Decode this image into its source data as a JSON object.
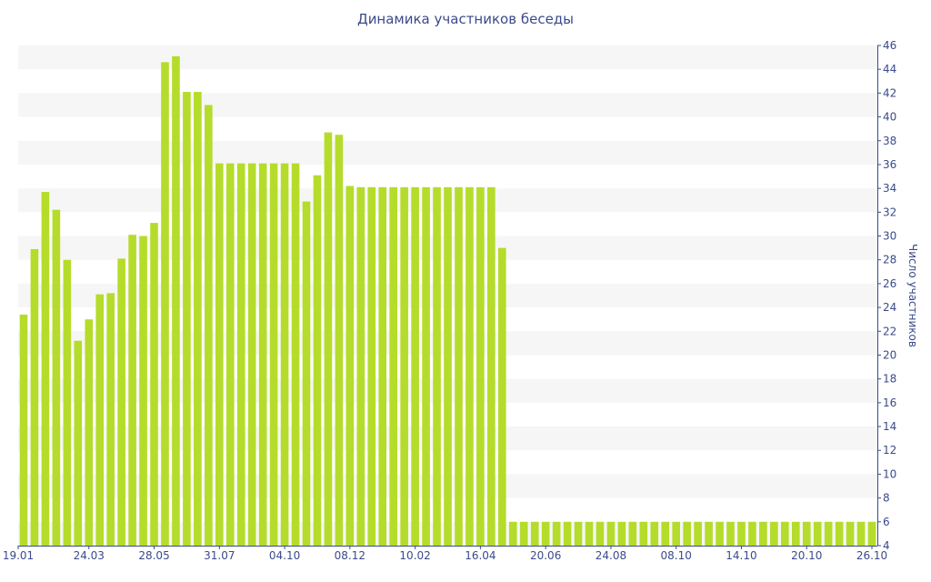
{
  "chart_data": {
    "type": "bar",
    "title": "Динамика участников беседы",
    "ylabel": "Число участников",
    "xlabel": "",
    "ylim": [
      4,
      46
    ],
    "y_ticks": [
      4,
      6,
      8,
      10,
      12,
      14,
      16,
      18,
      20,
      22,
      24,
      26,
      28,
      30,
      32,
      34,
      36,
      38,
      40,
      42,
      44,
      46
    ],
    "x_tick_labels": [
      {
        "index": 0,
        "label": "19.01"
      },
      {
        "index": 6,
        "label": "24.03"
      },
      {
        "index": 12,
        "label": "28.05"
      },
      {
        "index": 18,
        "label": "31.07"
      },
      {
        "index": 24,
        "label": "04.10"
      },
      {
        "index": 30,
        "label": "08.12"
      },
      {
        "index": 36,
        "label": "10.02"
      },
      {
        "index": 42,
        "label": "16.04"
      },
      {
        "index": 48,
        "label": "20.06"
      },
      {
        "index": 54,
        "label": "24.08"
      },
      {
        "index": 60,
        "label": "08.10"
      },
      {
        "index": 66,
        "label": "14.10"
      },
      {
        "index": 72,
        "label": "20.10"
      },
      {
        "index": 78,
        "label": "26.10"
      }
    ],
    "values": [
      23.4,
      28.9,
      33.7,
      32.2,
      28.0,
      21.2,
      23.0,
      25.1,
      25.2,
      28.1,
      30.1,
      30.0,
      31.1,
      44.6,
      45.1,
      42.1,
      42.1,
      41.0,
      36.1,
      36.1,
      36.1,
      36.1,
      36.1,
      36.1,
      36.1,
      36.1,
      32.9,
      35.1,
      38.7,
      38.5,
      34.2,
      34.1,
      34.1,
      34.1,
      34.1,
      34.1,
      34.1,
      34.1,
      34.1,
      34.1,
      34.1,
      34.1,
      34.1,
      34.1,
      29.0,
      6.0,
      6.0,
      6.0,
      6.0,
      6.0,
      6.0,
      6.0,
      6.0,
      6.0,
      6.0,
      6.0,
      6.0,
      6.0,
      6.0,
      6.0,
      6.0,
      6.0,
      6.0,
      6.0,
      6.0,
      6.0,
      6.0,
      6.0,
      6.0,
      6.0,
      6.0,
      6.0,
      6.0,
      6.0,
      6.0,
      6.0,
      6.0,
      6.0,
      6.0
    ],
    "bar_color": "#b5dc2a",
    "band_color": "#f6f6f6",
    "text_color": "#3b4a8a",
    "grid": "alternating-bands",
    "y_axis_position": "right"
  }
}
